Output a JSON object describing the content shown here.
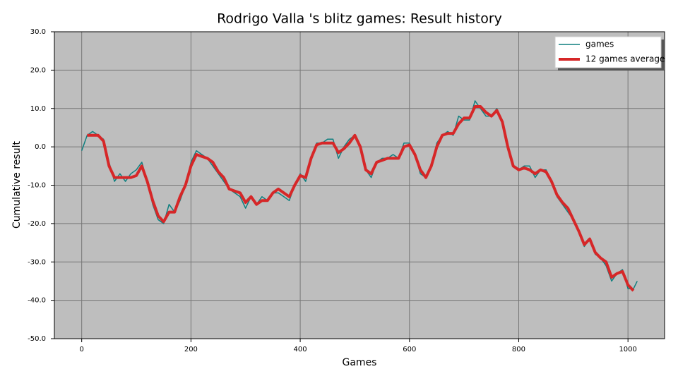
{
  "chart_data": {
    "type": "line",
    "title": "Rodrigo Valla 's blitz games: Result history",
    "x_label": "Games",
    "y_label": "Cumulative result",
    "x": [
      0,
      10,
      20,
      30,
      40,
      50,
      60,
      70,
      80,
      90,
      100,
      110,
      120,
      130,
      140,
      150,
      160,
      170,
      180,
      190,
      200,
      210,
      220,
      230,
      240,
      250,
      260,
      270,
      280,
      290,
      300,
      310,
      320,
      330,
      340,
      350,
      360,
      370,
      380,
      390,
      400,
      410,
      420,
      430,
      440,
      450,
      460,
      470,
      480,
      490,
      500,
      510,
      520,
      530,
      540,
      550,
      560,
      570,
      580,
      590,
      600,
      610,
      620,
      630,
      640,
      650,
      660,
      670,
      680,
      690,
      700,
      710,
      720,
      730,
      740,
      750,
      760,
      770,
      780,
      790,
      800,
      810,
      820,
      830,
      840,
      850,
      860,
      870,
      880,
      890,
      900,
      910,
      920,
      930,
      940,
      950,
      960,
      970,
      980,
      990,
      1000,
      1010,
      1017
    ],
    "series": [
      {
        "name": "games",
        "color": "#0e7f7f",
        "width": 1.5,
        "values": [
          -1,
          3,
          4,
          3,
          2,
          -4,
          -9,
          -7,
          -9,
          -7,
          -6,
          -4,
          -9,
          -15,
          -19,
          -20,
          -15,
          -17,
          -14,
          -10,
          -4,
          -1,
          -2,
          -3,
          -5,
          -7,
          -9,
          -11,
          -12,
          -13,
          -16,
          -13,
          -15,
          -13,
          -14,
          -12,
          -12,
          -13,
          -14,
          -10,
          -7,
          -9,
          -3,
          1,
          1,
          2,
          2,
          -3,
          0,
          2,
          3,
          0,
          -6,
          -8,
          -4,
          -3,
          -3,
          -2,
          -3,
          1,
          1,
          -2,
          -7,
          -8,
          -5,
          1,
          3,
          4,
          3,
          8,
          7,
          7,
          12,
          10,
          8,
          8,
          10,
          6,
          0,
          -5,
          -6,
          -5,
          -5,
          -8,
          -6,
          -6,
          -9,
          -13,
          -15,
          -17,
          -19,
          -22,
          -26,
          -24,
          -28,
          -29,
          -31,
          -35,
          -33,
          -32,
          -37,
          -37,
          -35
        ]
      },
      {
        "name": "12 games average",
        "color": "#d62728",
        "width": 4,
        "values": [
          null,
          3,
          3,
          3,
          1.5,
          -5,
          -8,
          -8,
          -8,
          -8,
          -7.5,
          -5,
          -9,
          -14,
          -18,
          -19.5,
          -17,
          -17,
          -13,
          -10,
          -5,
          -2,
          -2.5,
          -3,
          -4,
          -6.5,
          -8,
          -11,
          -11.5,
          -12,
          -14.5,
          -13,
          -15,
          -14,
          -14,
          -12,
          -11,
          -12,
          -13,
          -10,
          -7.5,
          -8,
          -3,
          0.5,
          1,
          1,
          1,
          -1.5,
          -0.5,
          1,
          3,
          0,
          -6,
          -7,
          -4,
          -3.5,
          -3,
          -3,
          -3,
          0,
          0.5,
          -2,
          -6,
          -8,
          -5,
          0,
          3,
          3.5,
          3.5,
          6,
          7.5,
          7.5,
          10.5,
          10.5,
          9,
          8,
          9.5,
          6.5,
          0,
          -5,
          -6,
          -5.5,
          -6,
          -7,
          -6,
          -6.5,
          -9,
          -12.5,
          -14.5,
          -16,
          -19,
          -22,
          -25.5,
          -24,
          -27.5,
          -29,
          -30,
          -34,
          -33,
          -32.5,
          -36,
          -37.5,
          null
        ]
      }
    ],
    "xlim": [
      -50,
      1067
    ],
    "ylim": [
      -50,
      30
    ],
    "xticks": [
      0,
      200,
      400,
      600,
      800,
      1000
    ],
    "yticks": [
      {
        "value": -50,
        "label": "-50.0"
      },
      {
        "value": -40,
        "label": "-40.0"
      },
      {
        "value": -30,
        "label": "-30.0"
      },
      {
        "value": -20,
        "label": "-20.0"
      },
      {
        "value": -10,
        "label": "-10.0"
      },
      {
        "value": 0,
        "label": "0.0"
      },
      {
        "value": 10,
        "label": "10.0"
      },
      {
        "value": 20,
        "label": "20.0"
      },
      {
        "value": 30,
        "label": "30.0"
      }
    ],
    "grid": true,
    "background": "#bebebe",
    "legend": "upper right"
  }
}
